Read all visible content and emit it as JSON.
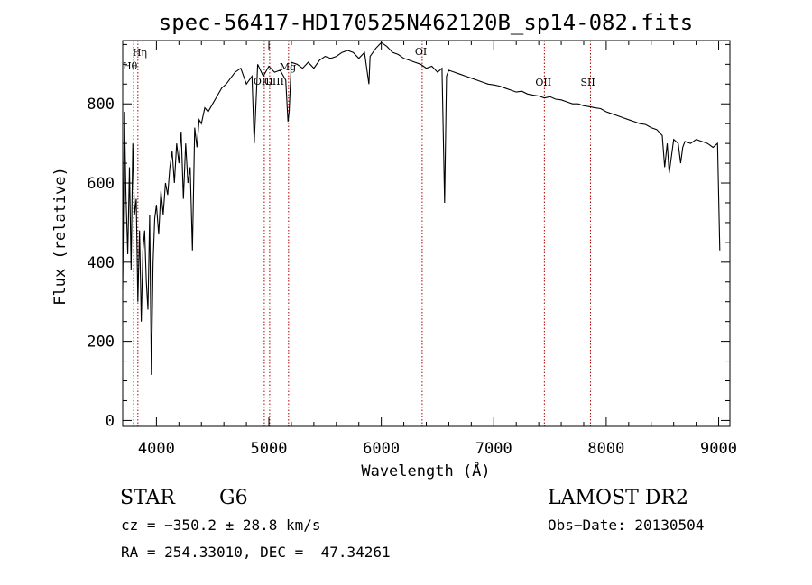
{
  "chart_data": {
    "type": "line",
    "title": "spec-56417-HD170525N462120B_sp14-082.fits",
    "xlabel": "Wavelength (Å)",
    "ylabel": "Flux (relative)",
    "xlim": [
      3700,
      9100
    ],
    "ylim": [
      -15,
      960
    ],
    "x_ticks": [
      4000,
      5000,
      6000,
      7000,
      8000,
      9000
    ],
    "y_ticks": [
      0,
      200,
      400,
      600,
      800
    ],
    "grid": false,
    "series": [
      {
        "color": "#000000",
        "x": [
          3700,
          3715,
          3730,
          3745,
          3760,
          3775,
          3790,
          3805,
          3820,
          3835,
          3850,
          3865,
          3880,
          3895,
          3910,
          3925,
          3940,
          3955,
          3970,
          3985,
          4000,
          4020,
          4040,
          4060,
          4080,
          4100,
          4120,
          4140,
          4160,
          4180,
          4200,
          4220,
          4240,
          4260,
          4280,
          4300,
          4320,
          4340,
          4360,
          4380,
          4400,
          4430,
          4460,
          4500,
          4540,
          4580,
          4620,
          4660,
          4700,
          4750,
          4800,
          4850,
          4870,
          4900,
          4950,
          5000,
          5050,
          5100,
          5150,
          5170,
          5180,
          5200,
          5250,
          5300,
          5350,
          5400,
          5450,
          5500,
          5550,
          5600,
          5650,
          5700,
          5750,
          5800,
          5850,
          5890,
          5900,
          5950,
          6000,
          6050,
          6100,
          6150,
          6200,
          6250,
          6300,
          6350,
          6400,
          6450,
          6500,
          6540,
          6563,
          6580,
          6600,
          6650,
          6700,
          6750,
          6800,
          6850,
          6900,
          6950,
          7000,
          7050,
          7100,
          7150,
          7200,
          7250,
          7300,
          7350,
          7400,
          7450,
          7500,
          7550,
          7600,
          7650,
          7700,
          7750,
          7800,
          7850,
          7900,
          7950,
          8000,
          8050,
          8100,
          8150,
          8200,
          8250,
          8300,
          8350,
          8400,
          8450,
          8498,
          8520,
          8542,
          8560,
          8600,
          8640,
          8662,
          8680,
          8700,
          8750,
          8800,
          8850,
          8900,
          8950,
          8990,
          9000,
          9010
        ],
        "y": [
          330,
          780,
          560,
          420,
          640,
          380,
          700,
          520,
          560,
          300,
          480,
          250,
          430,
          480,
          350,
          280,
          520,
          115,
          400,
          510,
          545,
          470,
          580,
          520,
          600,
          570,
          640,
          680,
          600,
          700,
          650,
          730,
          560,
          700,
          600,
          640,
          430,
          740,
          690,
          760,
          750,
          790,
          780,
          800,
          820,
          840,
          850,
          865,
          880,
          890,
          850,
          870,
          700,
          900,
          870,
          895,
          880,
          885,
          860,
          755,
          780,
          905,
          900,
          890,
          905,
          890,
          910,
          920,
          915,
          920,
          930,
          935,
          930,
          915,
          930,
          850,
          920,
          940,
          955,
          945,
          930,
          925,
          915,
          910,
          905,
          900,
          890,
          895,
          880,
          890,
          550,
          870,
          885,
          880,
          875,
          870,
          865,
          860,
          855,
          850,
          848,
          845,
          840,
          835,
          830,
          832,
          825,
          822,
          820,
          815,
          818,
          812,
          810,
          805,
          800,
          800,
          795,
          793,
          790,
          788,
          780,
          775,
          770,
          765,
          760,
          755,
          750,
          748,
          740,
          735,
          720,
          640,
          700,
          625,
          710,
          700,
          650,
          690,
          705,
          700,
          710,
          705,
          700,
          690,
          700,
          570,
          430
        ]
      }
    ],
    "annotations": [
      {
        "label": "Hη",
        "x": 3835
      },
      {
        "label": "Hθ",
        "x": 3797
      },
      {
        "label": "OIII",
        "x": 4959
      },
      {
        "label": "OIII",
        "x": 5007
      },
      {
        "label": "Mg",
        "x": 5175
      },
      {
        "label": "OI",
        "x": 6363
      },
      {
        "label": "OII",
        "x": 7450
      },
      {
        "label": "SII",
        "x": 7860
      }
    ]
  },
  "info": {
    "class": "STAR",
    "subclass": "G6",
    "survey": "LAMOST DR2",
    "cz": "cz = −350.2 ± 28.8 km/s",
    "obsdate": "Obs−Date: 20130504",
    "radec": "RA = 254.33010, DEC =  47.34261"
  }
}
